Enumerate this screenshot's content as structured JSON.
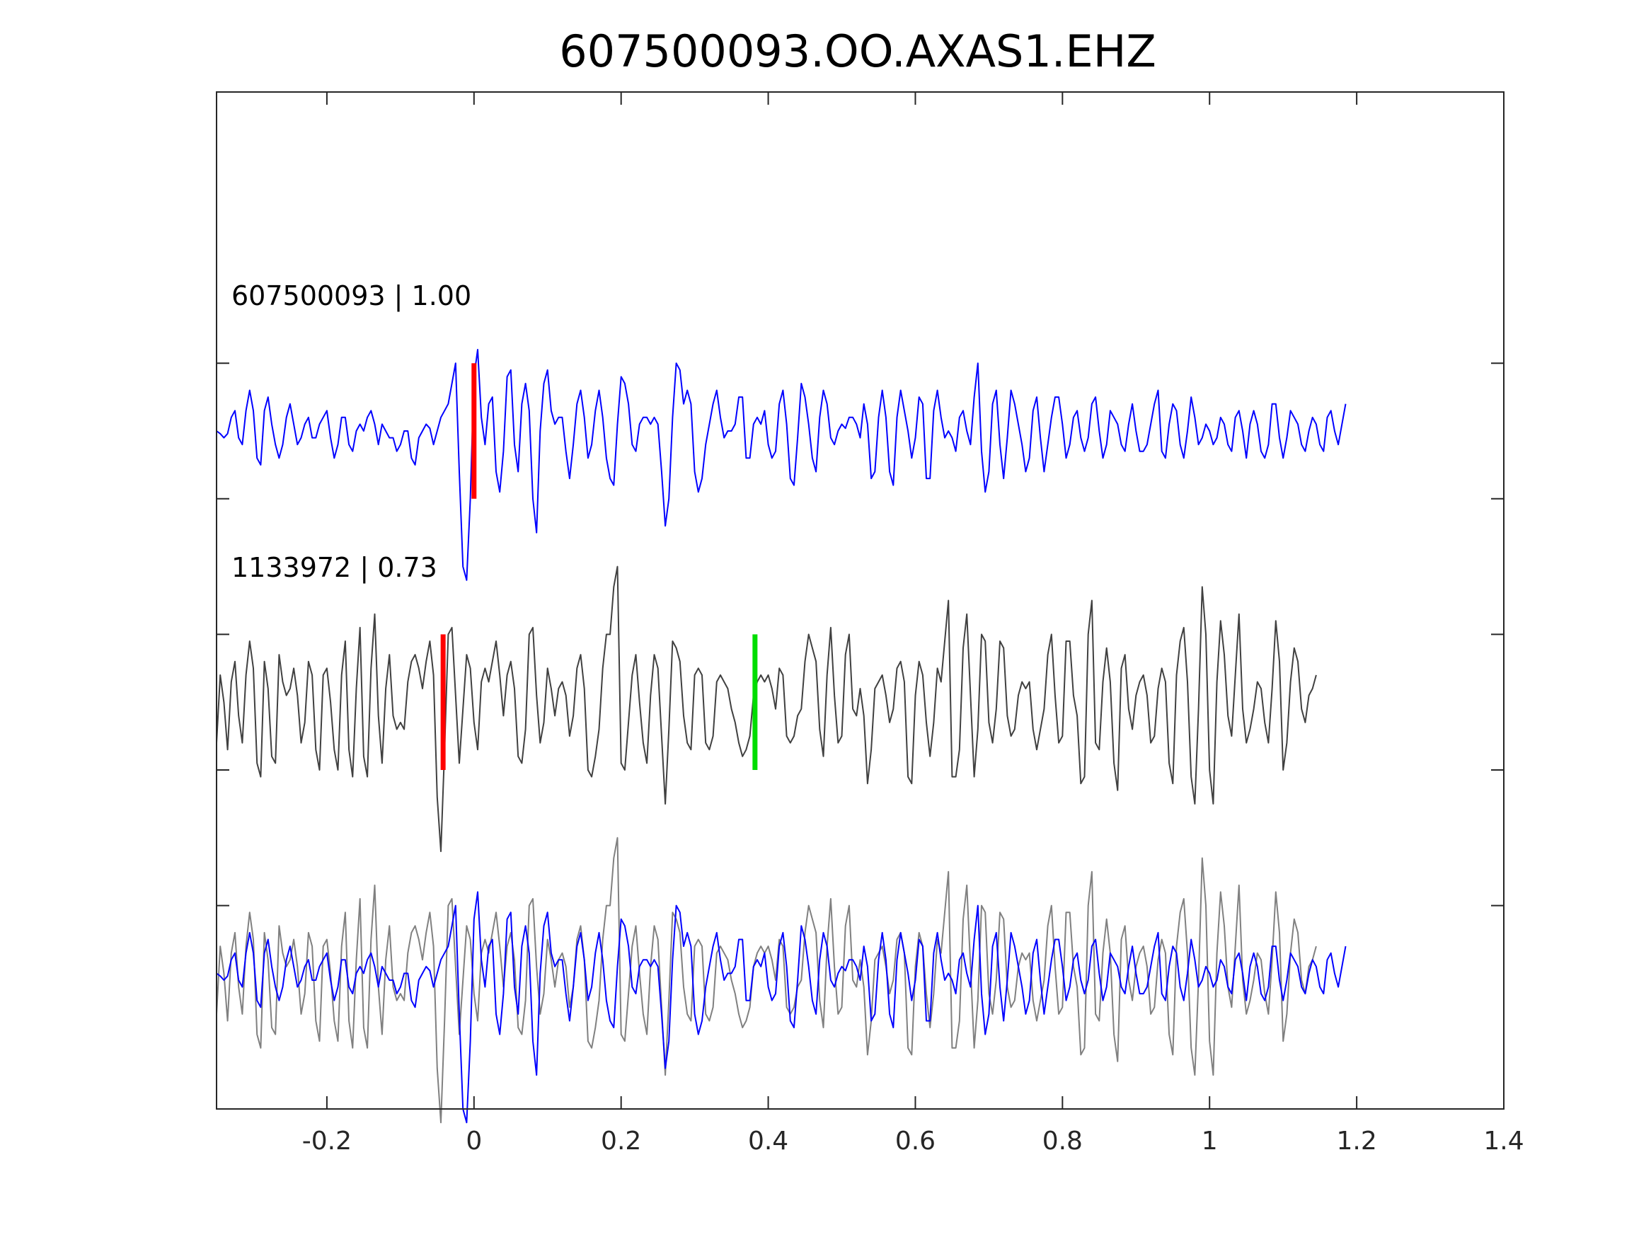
{
  "chart_data": {
    "type": "line",
    "title": "607500093.OO.AXAS1.EHZ",
    "xlabel": "",
    "ylabel": "",
    "xlim": [
      -0.35,
      1.4
    ],
    "x_ticks": [
      -0.2,
      0,
      0.2,
      0.4,
      0.6,
      0.8,
      1,
      1.2,
      1.4
    ],
    "x_tick_labels": [
      "-0.2",
      "0",
      "0.2",
      "0.4",
      "0.6",
      "0.8",
      "1",
      "1.2",
      "1.4"
    ],
    "y_tick_levels": [
      -3.5,
      -2.5,
      -1.5,
      -0.5,
      0.5
    ],
    "grid": false,
    "colors": {
      "template": "#0000ff",
      "detection": "#404040",
      "detection_overlay": "#808080",
      "pick_p": "#ff0000",
      "pick_s": "#00dd00",
      "axes": "#262626"
    },
    "traces": [
      {
        "label": "607500093 | 1.00",
        "color": "#0000ff",
        "offset": 0,
        "t0": -0.35,
        "dt": 0.005,
        "values": [
          0,
          -0.02,
          -0.05,
          -0.02,
          0.1,
          0.15,
          -0.05,
          -0.1,
          0.15,
          0.3,
          0.15,
          -0.2,
          -0.25,
          0.15,
          0.25,
          0.05,
          -0.1,
          -0.2,
          -0.1,
          0.1,
          0.2,
          0.05,
          -0.1,
          -0.05,
          0.05,
          0.1,
          -0.05,
          -0.05,
          0.05,
          0.1,
          0.15,
          -0.05,
          -0.2,
          -0.1,
          0.1,
          0.1,
          -0.1,
          -0.15,
          0,
          0.05,
          0,
          0.1,
          0.15,
          0.05,
          -0.1,
          0.05,
          0,
          -0.05,
          -0.05,
          -0.15,
          -0.1,
          0,
          0,
          -0.2,
          -0.25,
          -0.05,
          0,
          0.05,
          0.02,
          -0.1,
          0,
          0.1,
          0.15,
          0.2,
          0.35,
          0.5,
          -0.3,
          -1.0,
          -1.1,
          -0.5,
          0.4,
          0.6,
          0.1,
          -0.1,
          0.2,
          0.25,
          -0.3,
          -0.45,
          -0.15,
          0.4,
          0.45,
          -0.1,
          -0.3,
          0.2,
          0.35,
          0.15,
          -0.5,
          -0.75,
          0,
          0.35,
          0.45,
          0.15,
          0.05,
          0.1,
          0.1,
          -0.15,
          -0.35,
          -0.1,
          0.2,
          0.3,
          0.1,
          -0.2,
          -0.1,
          0.15,
          0.3,
          0.1,
          -0.2,
          -0.35,
          -0.4,
          0.05,
          0.4,
          0.35,
          0.2,
          -0.1,
          -0.15,
          0.05,
          0.1,
          0.1,
          0.05,
          0.1,
          0.05,
          -0.3,
          -0.7,
          -0.5,
          0.1,
          0.5,
          0.45,
          0.2,
          0.3,
          0.2,
          -0.3,
          -0.45,
          -0.35,
          -0.1,
          0.05,
          0.2,
          0.3,
          0.1,
          -0.05,
          0,
          0,
          0.05,
          0.25,
          0.25,
          -0.2,
          -0.2,
          0.05,
          0.1,
          0.05,
          0.15,
          -0.1,
          -0.2,
          -0.15,
          0.2,
          0.3,
          0.05,
          -0.35,
          -0.4,
          -0.05,
          0.35,
          0.25,
          0.05,
          -0.2,
          -0.3,
          0.1,
          0.3,
          0.2,
          -0.05,
          -0.1,
          0,
          0.05,
          0.02,
          0.1,
          0.1,
          0.05,
          -0.05,
          0.2,
          0.05,
          -0.35,
          -0.3,
          0.1,
          0.3,
          0.1,
          -0.3,
          -0.4,
          0.1,
          0.3,
          0.15,
          0,
          -0.2,
          -0.05,
          0.25,
          0.2,
          -0.35,
          -0.35,
          0.15,
          0.3,
          0.1,
          -0.05,
          0,
          -0.05,
          -0.15,
          0.1,
          0.15,
          0,
          -0.1,
          0.25,
          0.5,
          -0.15,
          -0.45,
          -0.3,
          0.2,
          0.3,
          -0.1,
          -0.35,
          -0.05,
          0.3,
          0.2,
          0.05,
          -0.1,
          -0.3,
          -0.2,
          0.15,
          0.25,
          -0.05,
          -0.3,
          -0.1,
          0.1,
          0.25,
          0.25,
          0.05,
          -0.2,
          -0.1,
          0.1,
          0.15,
          -0.05,
          -0.15,
          -0.05,
          0.2,
          0.25,
          0,
          -0.2,
          -0.1,
          0.15,
          0.1,
          0.05,
          -0.1,
          -0.15,
          0.05,
          0.2,
          0,
          -0.15,
          -0.15,
          -0.1,
          0.05,
          0.2,
          0.3,
          -0.15,
          -0.2,
          0.05,
          0.2,
          0.15,
          -0.1,
          -0.2,
          0,
          0.25,
          0.1,
          -0.1,
          -0.05,
          0.05,
          0,
          -0.1,
          -0.05,
          0.1,
          0.05,
          -0.1,
          -0.15,
          0.1,
          0.15,
          0,
          -0.2,
          0.05,
          0.15,
          0.05,
          -0.15,
          -0.2,
          -0.1,
          0.2,
          0.2,
          -0.05,
          -0.2,
          -0.05,
          0.15,
          0.1,
          0.05,
          -0.1,
          -0.15,
          0,
          0.1,
          0.05,
          -0.1,
          -0.15,
          0.1,
          0.15,
          0,
          -0.1,
          0.05,
          0.2
        ]
      },
      {
        "label": "1133972 | 0.73",
        "color": "#404040",
        "offset": -2,
        "t0": -0.35,
        "dt": 0.005,
        "values": [
          -0.3,
          0.2,
          0,
          -0.35,
          0.15,
          0.3,
          -0.1,
          -0.3,
          0.2,
          0.45,
          0.25,
          -0.45,
          -0.55,
          0.3,
          0.1,
          -0.4,
          -0.45,
          0.35,
          0.15,
          0.05,
          0.1,
          0.25,
          0.05,
          -0.3,
          -0.15,
          0.3,
          0.2,
          -0.35,
          -0.5,
          0.2,
          0.25,
          0,
          -0.35,
          -0.5,
          0.2,
          0.45,
          -0.35,
          -0.55,
          0.1,
          0.55,
          -0.4,
          -0.55,
          0.25,
          0.65,
          -0.1,
          -0.45,
          0.1,
          0.35,
          -0.1,
          -0.2,
          -0.15,
          -0.2,
          0.15,
          0.3,
          0.35,
          0.25,
          0.1,
          0.3,
          0.45,
          0.2,
          -0.7,
          -1.1,
          -0.35,
          0.5,
          0.55,
          0.05,
          -0.45,
          -0.05,
          0.35,
          0.25,
          -0.15,
          -0.35,
          0.15,
          0.25,
          0.15,
          0.3,
          0.45,
          0.2,
          -0.1,
          0.2,
          0.3,
          0.1,
          -0.4,
          -0.45,
          -0.2,
          0.5,
          0.55,
          0.05,
          -0.3,
          -0.15,
          0.25,
          0.1,
          -0.1,
          0.1,
          0.15,
          0.05,
          -0.25,
          -0.1,
          0.25,
          0.35,
          0.1,
          -0.5,
          -0.55,
          -0.4,
          -0.2,
          0.25,
          0.5,
          0.5,
          0.85,
          1.0,
          -0.45,
          -0.5,
          -0.15,
          0.2,
          0.35,
          0,
          -0.3,
          -0.45,
          0.05,
          0.35,
          0.25,
          -0.25,
          -0.75,
          -0.2,
          0.45,
          0.4,
          0.3,
          -0.1,
          -0.3,
          -0.35,
          0.2,
          0.25,
          0.2,
          -0.3,
          -0.35,
          -0.25,
          0.15,
          0.2,
          0.15,
          0.1,
          -0.05,
          -0.15,
          -0.3,
          -0.4,
          -0.35,
          -0.25,
          0.05,
          0.15,
          0.2,
          0.15,
          0.2,
          0.1,
          -0.05,
          0.25,
          0.2,
          -0.25,
          -0.3,
          -0.25,
          -0.1,
          -0.05,
          0.3,
          0.5,
          0.4,
          0.3,
          -0.2,
          -0.4,
          0.2,
          0.55,
          0.05,
          -0.3,
          -0.25,
          0.35,
          0.5,
          -0.05,
          -0.1,
          0.1,
          -0.1,
          -0.6,
          -0.35,
          0.1,
          0.15,
          0.2,
          0.05,
          -0.15,
          -0.05,
          0.25,
          0.3,
          0.15,
          -0.55,
          -0.6,
          0.05,
          0.3,
          0.2,
          -0.15,
          -0.4,
          -0.15,
          0.25,
          0.15,
          0.45,
          0.75,
          -0.55,
          -0.55,
          -0.35,
          0.4,
          0.65,
          0.05,
          -0.55,
          -0.2,
          0.5,
          0.45,
          -0.15,
          -0.3,
          -0.05,
          0.45,
          0.4,
          -0.1,
          -0.25,
          -0.2,
          0.05,
          0.15,
          0.1,
          0.15,
          -0.2,
          -0.35,
          -0.2,
          -0.05,
          0.35,
          0.5,
          0.05,
          -0.3,
          -0.25,
          0.45,
          0.45,
          0.05,
          -0.1,
          -0.6,
          -0.55,
          0.5,
          0.75,
          -0.3,
          -0.35,
          0.15,
          0.4,
          0.15,
          -0.45,
          -0.65,
          0.25,
          0.35,
          -0.05,
          -0.2,
          0.05,
          0.15,
          0.2,
          0.05,
          -0.3,
          -0.25,
          0.1,
          0.25,
          0.15,
          -0.45,
          -0.6,
          0.2,
          0.45,
          0.55,
          0.15,
          -0.55,
          -0.75,
          -0.05,
          0.85,
          0.5,
          -0.5,
          -0.75,
          0.15,
          0.6,
          0.35,
          -0.1,
          -0.25,
          0.2,
          0.65,
          -0.05,
          -0.3,
          -0.2,
          -0.05,
          0.15,
          0.1,
          -0.15,
          -0.3,
          0.1,
          0.6,
          0.3,
          -0.5,
          -0.3,
          0.15,
          0.4,
          0.3,
          -0.05,
          -0.15,
          0.05,
          0.1,
          0.2
        ]
      }
    ],
    "picks": [
      {
        "trace": 0,
        "time": 0.0,
        "color": "#ff0000"
      },
      {
        "trace": 1,
        "time": -0.042,
        "color": "#ff0000"
      },
      {
        "trace": 1,
        "time": 0.382,
        "color": "#00dd00"
      }
    ],
    "overlay_offset": -4
  }
}
